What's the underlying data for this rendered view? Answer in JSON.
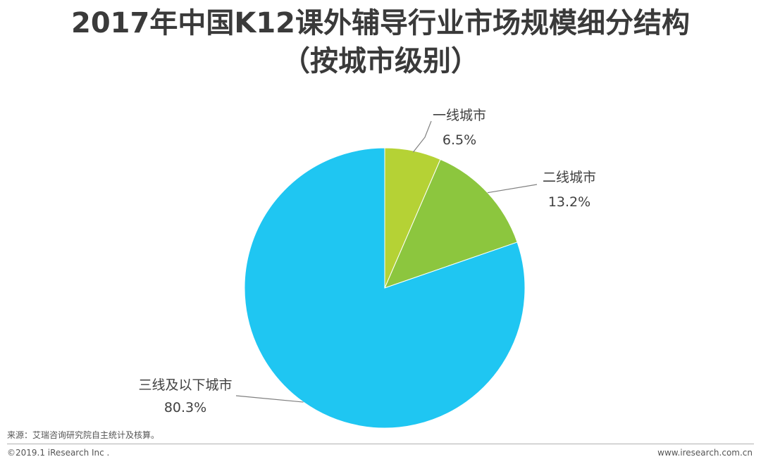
{
  "title": "2017年中国K12课外辅导行业市场规模细分结构",
  "subtitle": "（按城市级别）",
  "chart_data": {
    "type": "pie",
    "title": "2017年中国K12课外辅导行业市场规模细分结构",
    "subtitle": "（按城市级别）",
    "slices": [
      {
        "label": "一线城市",
        "value": 6.5,
        "value_label": "6.5%",
        "color": "#b5d235"
      },
      {
        "label": "二线城市",
        "value": 13.2,
        "value_label": "13.2%",
        "color": "#8cc63e"
      },
      {
        "label": "三线及以下城市",
        "value": 80.3,
        "value_label": "80.3%",
        "color": "#1fc6f2"
      }
    ],
    "unit": "%",
    "start_angle": "12 o'clock",
    "direction": "clockwise",
    "legend": "none"
  },
  "footer": {
    "source": "来源：艾瑞咨询研究院自主统计及核算。",
    "copyright": "©2019.1 iResearch Inc .",
    "website": "www.iresearch.com.cn"
  }
}
